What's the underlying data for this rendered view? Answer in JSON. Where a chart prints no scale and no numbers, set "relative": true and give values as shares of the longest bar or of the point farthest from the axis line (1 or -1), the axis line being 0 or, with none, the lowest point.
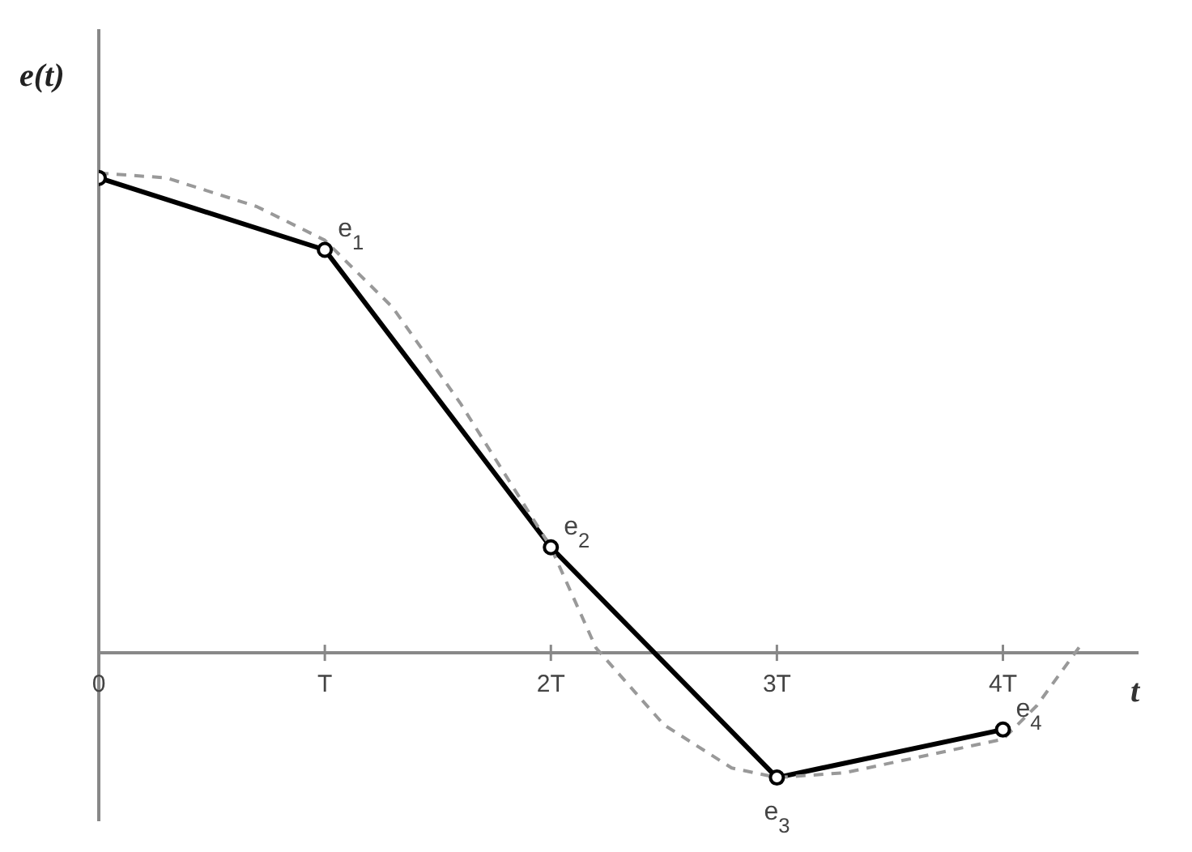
{
  "chart_data": {
    "type": "line",
    "relative": true,
    "xlabel": "t",
    "ylabel": "e(t)",
    "xlim": [
      0,
      4.6
    ],
    "xticks": [
      0,
      {
        "value": 1,
        "label": "T"
      },
      {
        "value": 2,
        "label": "2T"
      },
      {
        "value": 3,
        "label": "3T"
      },
      {
        "value": 4,
        "label": "4T"
      }
    ],
    "series": [
      {
        "color": "#000000",
        "marker": "circle",
        "line_style": "solid",
        "x": [
          0,
          1,
          2,
          3,
          4
        ],
        "values": [
          0.99,
          0.84,
          0.22,
          -0.26,
          -0.16
        ]
      },
      {
        "color": "#999999",
        "marker": "none",
        "line_style": "dashed",
        "x": [
          0,
          0.3,
          0.7,
          1,
          1.3,
          1.6,
          2,
          2.2,
          2.5,
          2.8,
          3,
          3.3,
          3.7,
          4,
          4.15,
          4.35
        ],
        "values": [
          1,
          0.99,
          0.93,
          0.86,
          0.72,
          0.52,
          0.22,
          0.01,
          -0.15,
          -0.24,
          -0.26,
          -0.25,
          -0.21,
          -0.18,
          -0.11,
          0.02
        ]
      }
    ],
    "annotations": [
      {
        "text": "e$_{1}$",
        "x": 1,
        "y": 0.84
      },
      {
        "text": "e$_{2}$",
        "x": 2,
        "y": 0.22
      },
      {
        "text": "e$_{3}$",
        "x": 3,
        "y": -0.26
      },
      {
        "text": "e$_{4}$",
        "x": 4,
        "y": -0.16
      }
    ]
  }
}
